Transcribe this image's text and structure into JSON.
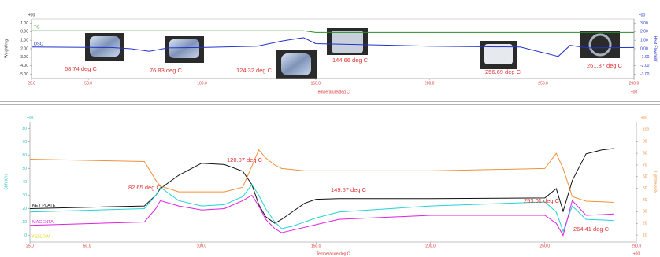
{
  "chart_data": [
    {
      "type": "line",
      "x_label": "Temperature/deg C",
      "y_label": "Weight/mg",
      "y2_label": "Heat Flow/mW",
      "x_exponent": "+00",
      "y_exponent": "+00",
      "y2_exponent": "+00",
      "x": [
        25,
        60,
        68.74,
        76.83,
        85,
        100,
        124.32,
        135,
        144.66,
        150,
        200,
        240,
        256.69,
        261.87,
        270,
        290
      ],
      "series": [
        {
          "name": "TG",
          "color": "#2e8b2e",
          "values": [
            0.1,
            0.1,
            0.1,
            0.1,
            0.1,
            0.1,
            0.1,
            0.1,
            0.1,
            -0.1,
            -0.1,
            -0.1,
            -0.1,
            -0.1,
            -0.1,
            -0.1
          ]
        },
        {
          "name": "DSC",
          "color": "#2233cc",
          "axis": "y2",
          "values": [
            0.2,
            0.15,
            0.0,
            -0.3,
            0.1,
            0.15,
            0.3,
            0.9,
            1.3,
            0.6,
            0.3,
            0.2,
            -0.9,
            0.4,
            0.1,
            0.15
          ]
        }
      ],
      "xlim": [
        25,
        290
      ],
      "xticks": [
        {
          "value": 25,
          "label": "25.0"
        },
        {
          "value": 50,
          "label": "50.0"
        },
        {
          "value": 100,
          "label": "100.0"
        },
        {
          "value": 150,
          "label": "150.0"
        },
        {
          "value": 200,
          "label": "200.0"
        },
        {
          "value": 250,
          "label": "250.0"
        },
        {
          "value": 290,
          "label": "290.0"
        }
      ],
      "ylim": [
        -5.5,
        1.5
      ],
      "yticks": [
        {
          "value": 1,
          "label": "1.00"
        },
        {
          "value": 0,
          "label": "0.00"
        },
        {
          "value": -1,
          "label": "-1.00"
        },
        {
          "value": -2,
          "label": "-2.00"
        },
        {
          "value": -3,
          "label": "-3.00"
        },
        {
          "value": -4,
          "label": "-4.00"
        },
        {
          "value": -5,
          "label": "-5.00"
        }
      ],
      "y2lim": [
        -3.5,
        3.5
      ],
      "y2ticks": [
        {
          "value": 3,
          "label": "3.00"
        },
        {
          "value": 2,
          "label": "2.00"
        },
        {
          "value": 1,
          "label": "1.00"
        },
        {
          "value": 0,
          "label": "0.00"
        },
        {
          "value": -1,
          "label": "-1.00"
        },
        {
          "value": -2,
          "label": "-2.00"
        },
        {
          "value": -3,
          "label": "-3.00"
        }
      ],
      "grid": false,
      "annotations": [
        "68.74 deg C",
        "76.83 deg C",
        "124.32 deg C",
        "144.66 deg C",
        "256.69 deg C",
        "261.87 deg C"
      ]
    },
    {
      "type": "line",
      "x_label": "Temperature/deg C",
      "y_label": "CMYK/%",
      "y2_label": "Lightness/%",
      "x_exponent": "+00",
      "y_exponent": "+00",
      "y2_exponent": "+00",
      "x": [
        25,
        75,
        80,
        82,
        90,
        100,
        110,
        118,
        122,
        125,
        128,
        132,
        135,
        140,
        145,
        150,
        160,
        200,
        250,
        255,
        258,
        262,
        268,
        275,
        280
      ],
      "series": [
        {
          "name": "KEY PLATE",
          "color": "#111111",
          "values": [
            20,
            22,
            30,
            35,
            45,
            54,
            53,
            48,
            38,
            23,
            14,
            9,
            12,
            18,
            24,
            27,
            27.5,
            27.5,
            28,
            35,
            18,
            41,
            61,
            64,
            65
          ]
        },
        {
          "color": "#22d3d3",
          "values": [
            17.5,
            20,
            30,
            36,
            26,
            22,
            23,
            29,
            38,
            30,
            20,
            10,
            5,
            7,
            10,
            13,
            17.5,
            22,
            25,
            17.5,
            3,
            22,
            12,
            11.5,
            11
          ]
        },
        {
          "name": "MAGENTA",
          "color": "#e020e0",
          "values": [
            7.5,
            10,
            20,
            26,
            22,
            19,
            20,
            26,
            30,
            22,
            12,
            5,
            2,
            4,
            6,
            8,
            12,
            15,
            15,
            9,
            0,
            26,
            15,
            15.5,
            16
          ]
        },
        {
          "color": "#f0903a",
          "axis": "y2",
          "values": [
            75,
            73,
            57,
            52,
            47,
            47,
            47,
            51,
            69,
            83,
            76,
            70,
            67,
            66,
            65,
            65,
            65,
            65,
            67,
            80,
            67,
            43,
            39,
            38.5,
            38
          ]
        }
      ],
      "extra_labels": [
        {
          "text": "YELLOW",
          "color": "#e0d000"
        }
      ],
      "xlim": [
        25,
        290
      ],
      "xticks": [
        {
          "value": 25,
          "label": "25.0"
        },
        {
          "value": 50,
          "label": "50.0"
        },
        {
          "value": 100,
          "label": "100.0"
        },
        {
          "value": 150,
          "label": "150.0"
        },
        {
          "value": 200,
          "label": "200.0"
        },
        {
          "value": 250,
          "label": "250.0"
        },
        {
          "value": 290,
          "label": "290.0"
        }
      ],
      "ylim": [
        -5,
        85
      ],
      "yticks": [
        0,
        10,
        20,
        30,
        40,
        50,
        60,
        70,
        80
      ],
      "y2lim": [
        4,
        107
      ],
      "y2ticks": [
        10,
        20,
        30,
        40,
        50,
        60,
        70,
        80,
        90,
        100
      ],
      "grid": false,
      "annotations": [
        "82.65 deg C",
        "120.07 deg C",
        "149.57 deg C",
        "253.01 deg C",
        "264.41 deg C"
      ]
    }
  ]
}
